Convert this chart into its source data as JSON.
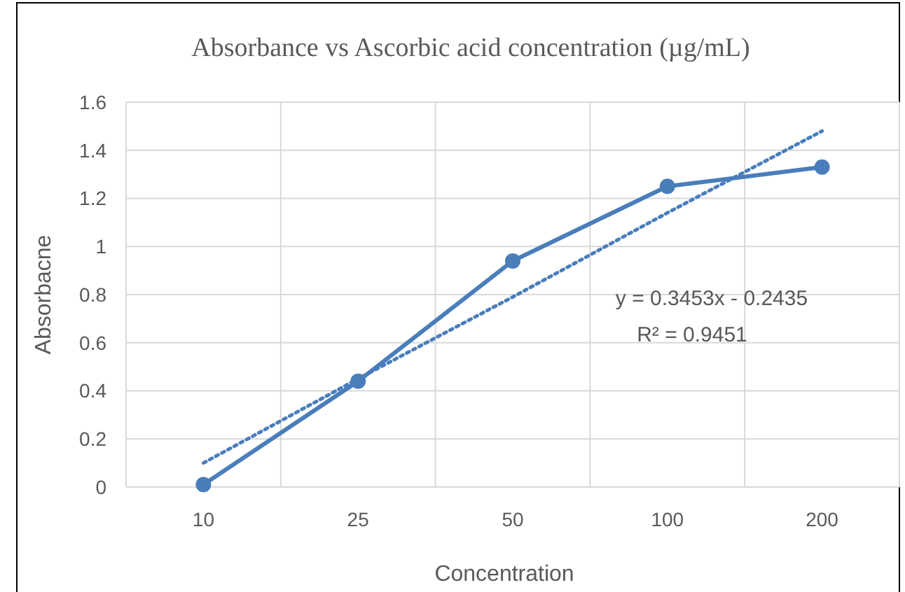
{
  "chart_data": {
    "type": "line",
    "title": "Absorbance vs Ascorbic acid concentration (µg/mL)",
    "xlabel": "Concentration",
    "ylabel": "Absorbacne",
    "categories": [
      "10",
      "25",
      "50",
      "100",
      "200"
    ],
    "ylim": [
      0,
      1.6
    ],
    "yticks": [
      0,
      0.2,
      0.4,
      0.6,
      0.8,
      1,
      1.2,
      1.4,
      1.6
    ],
    "grid": true,
    "series": [
      {
        "color": "#4a7ebb",
        "values": [
          0.01,
          0.44,
          0.94,
          1.25,
          1.33
        ],
        "marker": "circle",
        "line_style": "solid"
      },
      {
        "color": "#4a7ebb",
        "values": [
          0.1,
          0.45,
          0.79,
          1.14,
          1.48
        ],
        "marker": "none",
        "line_style": "dotted"
      }
    ],
    "annotations": [
      "y = 0.3453x - 0.2435",
      "R² = 0.9451"
    ]
  }
}
